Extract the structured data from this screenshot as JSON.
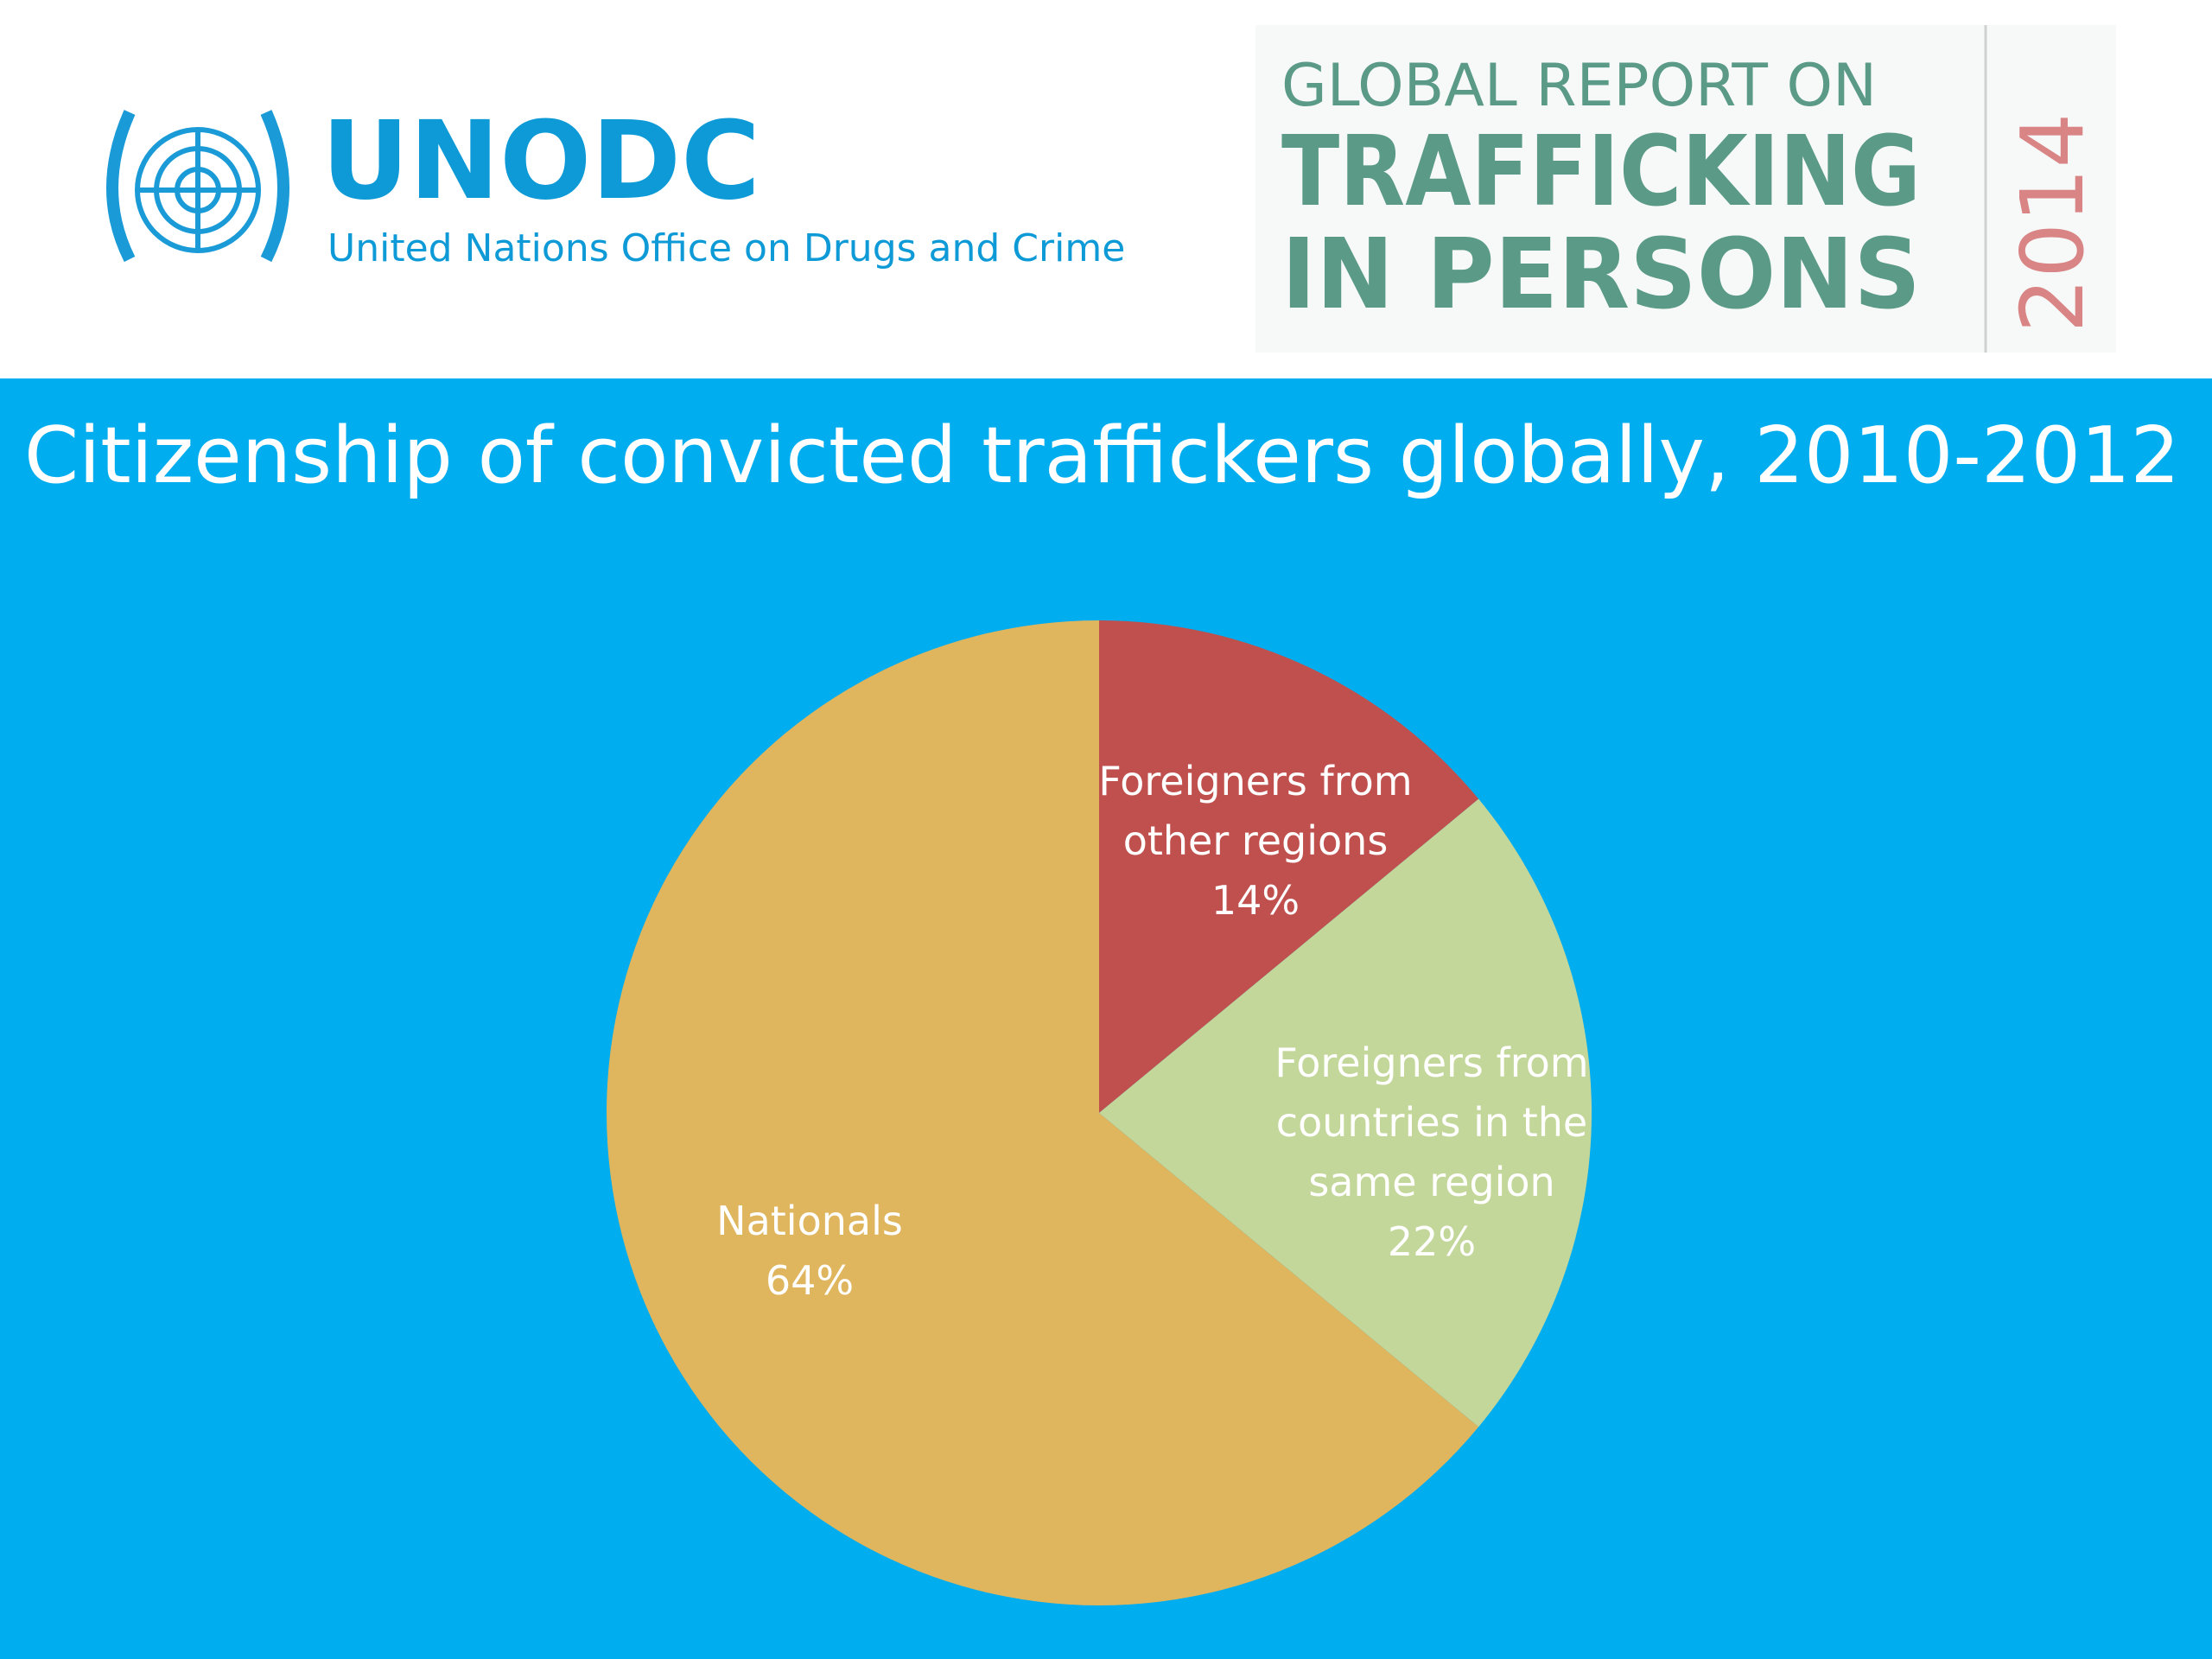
{
  "header": {
    "logo_name": "UNODC",
    "logo_subtitle": "United Nations Office on Drugs and Crime",
    "report_line1": "GLOBAL REPORT ON",
    "report_line2": "TRAFFICKING",
    "report_line3": "IN PERSONS",
    "report_year": "2014"
  },
  "chart_data": {
    "type": "pie",
    "title": "Citizenship of convicted traffickers globally, 2010-2012",
    "categories": [
      "Foreigners from other regions",
      "Foreigners from countries in the same region",
      "Nationals"
    ],
    "values": [
      14,
      22,
      64
    ],
    "value_labels": [
      "14%",
      "22%",
      "64%"
    ],
    "colors": [
      "#c0504d",
      "#c4d79b",
      "#dfb55e"
    ]
  }
}
